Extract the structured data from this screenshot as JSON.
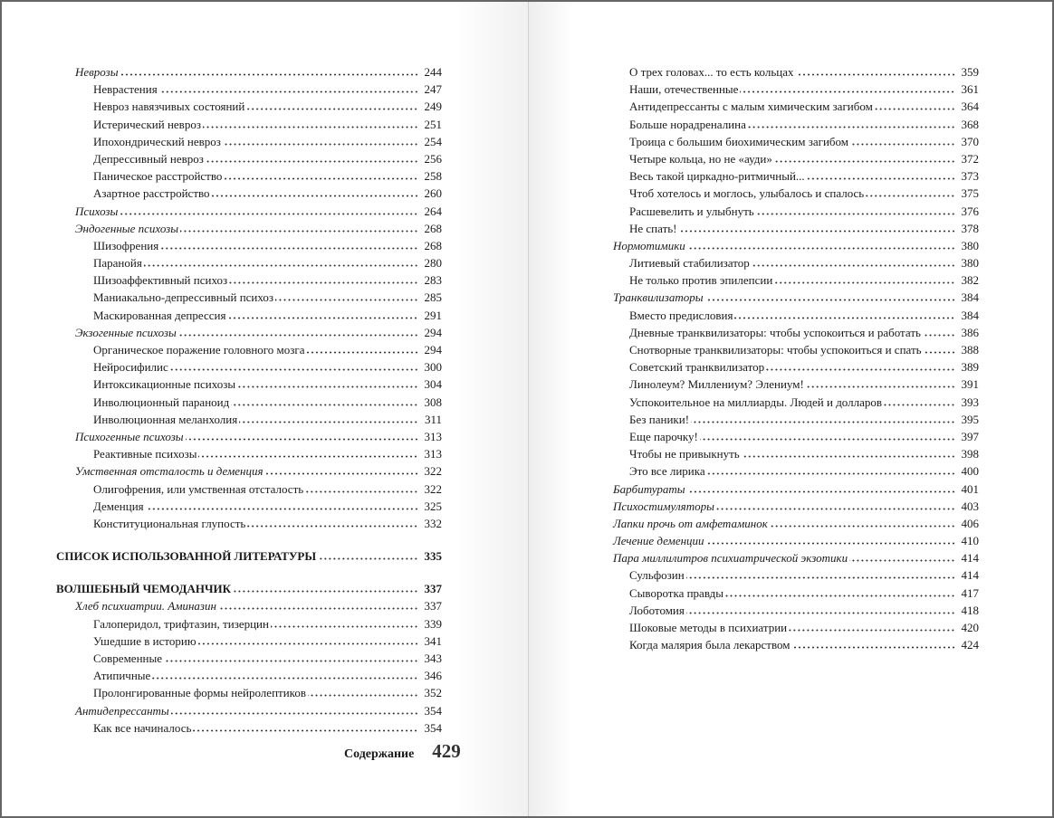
{
  "left_page": {
    "entries": [
      {
        "level": 1,
        "title": "Неврозы",
        "page": "244"
      },
      {
        "level": 2,
        "title": "Неврастения",
        "page": "247"
      },
      {
        "level": 2,
        "title": "Невроз навязчивых состояний",
        "page": "249"
      },
      {
        "level": 2,
        "title": "Истерический невроз",
        "page": "251"
      },
      {
        "level": 2,
        "title": "Ипохондрический невроз",
        "page": "254"
      },
      {
        "level": 2,
        "title": "Депрессивный невроз",
        "page": "256"
      },
      {
        "level": 2,
        "title": "Паническое расстройство",
        "page": "258"
      },
      {
        "level": 2,
        "title": "Азартное расстройство",
        "page": "260"
      },
      {
        "level": 1,
        "title": "Психозы",
        "page": "264"
      },
      {
        "level": 1,
        "title": "Эндогенные психозы",
        "page": "268"
      },
      {
        "level": 2,
        "title": "Шизофрения",
        "page": "268"
      },
      {
        "level": 2,
        "title": "Паранойя",
        "page": "280"
      },
      {
        "level": 2,
        "title": "Шизоаффективный психоз",
        "page": "283"
      },
      {
        "level": 2,
        "title": "Маниакально-депрессивный психоз",
        "page": "285"
      },
      {
        "level": 2,
        "title": "Маскированная депрессия",
        "page": "291"
      },
      {
        "level": 1,
        "title": "Экзогенные психозы",
        "page": "294"
      },
      {
        "level": 2,
        "title": "Органическое поражение головного мозга",
        "page": "294"
      },
      {
        "level": 2,
        "title": "Нейросифилис",
        "page": "300"
      },
      {
        "level": 2,
        "title": "Интоксикационные психозы",
        "page": "304"
      },
      {
        "level": 2,
        "title": "Инволюционный параноид",
        "page": "308"
      },
      {
        "level": 2,
        "title": "Инволюционная меланхолия",
        "page": "311"
      },
      {
        "level": 1,
        "title": "Психогенные психозы",
        "page": "313"
      },
      {
        "level": 2,
        "title": "Реактивные психозы",
        "page": "313"
      },
      {
        "level": 1,
        "title": "Умственная отсталость и деменция",
        "page": "322"
      },
      {
        "level": 2,
        "title": "Олигофрения, или умственная отсталость",
        "page": "322"
      },
      {
        "level": 2,
        "title": "Деменция",
        "page": "325"
      },
      {
        "level": 2,
        "title": "Конституциональная глупость",
        "page": "332"
      },
      {
        "level": "spacer"
      },
      {
        "level": 0,
        "title": "СПИСОК ИСПОЛЬЗОВАННОЙ ЛИТЕРАТУРЫ",
        "page": "335"
      },
      {
        "level": "spacer"
      },
      {
        "level": 0,
        "title": "ВОЛШЕБНЫЙ ЧЕМОДАНЧИК",
        "page": "337"
      },
      {
        "level": 1,
        "title": "Хлеб психиатрии. Аминазин",
        "page": "337"
      },
      {
        "level": 2,
        "title": "Галоперидол, трифтазин, тизерцин",
        "page": "339"
      },
      {
        "level": 2,
        "title": "Ушедшие в историю",
        "page": "341"
      },
      {
        "level": 2,
        "title": "Современные",
        "page": "343"
      },
      {
        "level": 2,
        "title": "Атипичные",
        "page": "346"
      },
      {
        "level": 2,
        "title": "Пролонгированные формы нейролептиков",
        "page": "352"
      },
      {
        "level": 1,
        "title": "Антидепрессанты",
        "page": "354"
      },
      {
        "level": 2,
        "title": "Как все начиналось",
        "page": "354"
      }
    ],
    "footer": {
      "label": "Содержание",
      "page_number": "429"
    }
  },
  "right_page": {
    "entries": [
      {
        "level": 2,
        "title": "О трех головах... то есть кольцах",
        "page": "359"
      },
      {
        "level": 2,
        "title": "Наши, отечественные",
        "page": "361"
      },
      {
        "level": 2,
        "title": "Антидепрессанты с малым химическим загибом",
        "page": "364"
      },
      {
        "level": 2,
        "title": "Больше норадреналина",
        "page": "368"
      },
      {
        "level": 2,
        "title": "Троица с большим  биохимическим загибом",
        "page": "370"
      },
      {
        "level": 2,
        "title": "Четыре кольца, но не «ауди»",
        "page": "372"
      },
      {
        "level": 2,
        "title": "Весь такой циркадно-ритмичный...",
        "page": "373"
      },
      {
        "level": 2,
        "title": "Чтоб хотелось и моглось, улыбалось и спалось",
        "page": "375"
      },
      {
        "level": 2,
        "title": "Расшевелить и улыбнуть",
        "page": "376"
      },
      {
        "level": 2,
        "title": "Не спать!",
        "page": "378"
      },
      {
        "level": 1,
        "title": "Нормотимики",
        "page": "380"
      },
      {
        "level": 2,
        "title": "Литиевый стабилизатор",
        "page": "380"
      },
      {
        "level": 2,
        "title": "Не только против эпилепсии",
        "page": "382"
      },
      {
        "level": 1,
        "title": "Транквилизаторы",
        "page": "384"
      },
      {
        "level": 2,
        "title": "Вместо предисловия",
        "page": "384"
      },
      {
        "level": 2,
        "title": "Дневные транквилизаторы: чтобы успокоиться и работать",
        "page": "386"
      },
      {
        "level": 2,
        "title": "Снотворные транквилизаторы: чтобы успокоиться и спать",
        "page": "388"
      },
      {
        "level": 2,
        "title": "Советский транквилизатор",
        "page": "389"
      },
      {
        "level": 2,
        "title": "Линолеум? Миллениум? Элениум!",
        "page": "391"
      },
      {
        "level": 2,
        "title": "Успокоительное на миллиарды. Людей и долларов",
        "page": "393"
      },
      {
        "level": 2,
        "title": "Без паники!",
        "page": "395"
      },
      {
        "level": 2,
        "title": "Еще парочку!",
        "page": "397"
      },
      {
        "level": 2,
        "title": "Чтобы не привыкнуть",
        "page": "398"
      },
      {
        "level": 2,
        "title": "Это все лирика",
        "page": "400"
      },
      {
        "level": 1,
        "title": "Барбитураты",
        "page": "401"
      },
      {
        "level": 1,
        "title": "Психостимуляторы",
        "page": "403"
      },
      {
        "level": 1,
        "title": "Лапки прочь от амфетаминок",
        "page": "406"
      },
      {
        "level": 1,
        "title": "Лечение деменции",
        "page": "410"
      },
      {
        "level": 1,
        "title": "Пара миллилитров психиатрической экзотики",
        "page": "414"
      },
      {
        "level": 2,
        "title": "Сульфозин",
        "page": "414"
      },
      {
        "level": 2,
        "title": "Сыворотка правды",
        "page": "417"
      },
      {
        "level": 2,
        "title": "Лоботомия",
        "page": "418"
      },
      {
        "level": 2,
        "title": "Шоковые методы в психиатрии",
        "page": "420"
      },
      {
        "level": 2,
        "title": "Когда малярия была лекарством",
        "page": "424"
      }
    ]
  }
}
